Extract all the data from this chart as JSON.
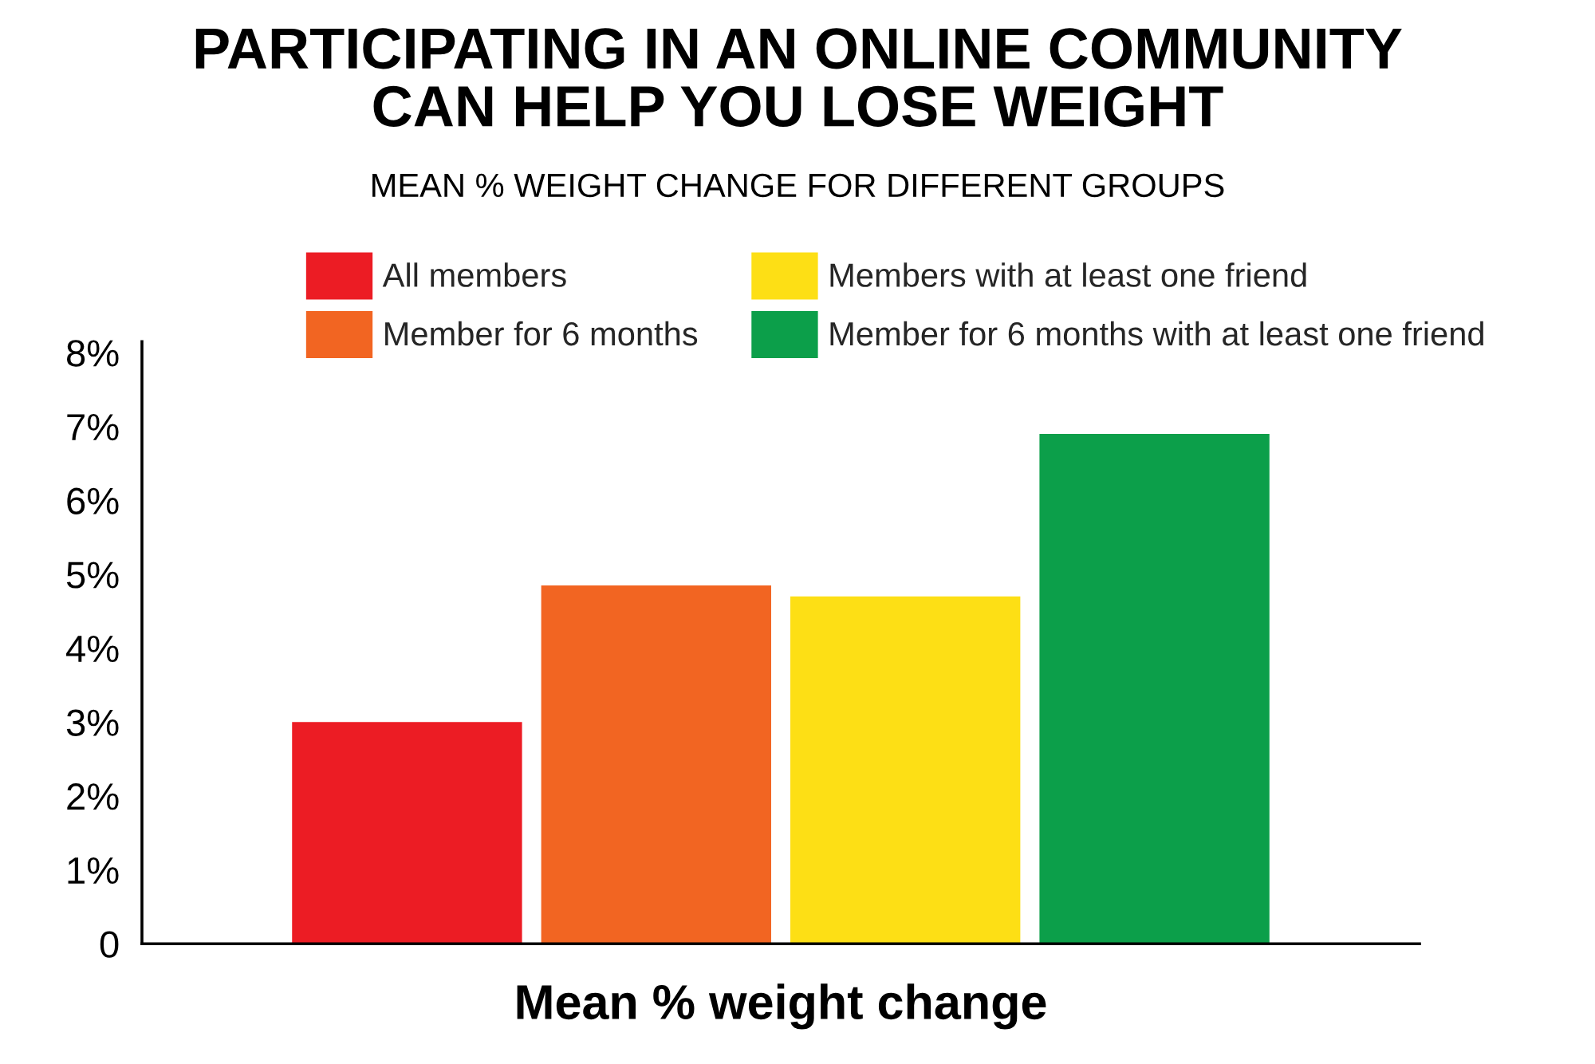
{
  "chart_data": {
    "type": "bar",
    "title": "PARTICIPATING IN AN ONLINE COMMUNITY\nCAN HELP YOU LOSE WEIGHT",
    "subtitle": "MEAN % WEIGHT CHANGE FOR DIFFERENT GROUPS",
    "xlabel": "Mean % weight change",
    "categories": [
      null
    ],
    "series": [
      {
        "name": "All members",
        "color": "#ec1c24",
        "values": [
          3.0
        ]
      },
      {
        "name": "Member for 6 months",
        "color": "#f26522",
        "values": [
          4.85
        ]
      },
      {
        "name": "Members with at least one friend",
        "color": "#fddf15",
        "values": [
          4.7
        ]
      },
      {
        "name": "Member for 6 months with at least one friend",
        "color": "#0c9f4a",
        "values": [
          6.9
        ]
      }
    ],
    "ylim": [
      0,
      8.15
    ],
    "yticks": [
      0,
      {
        "value": 1,
        "label": "1%"
      },
      {
        "value": 2,
        "label": "2%"
      },
      {
        "value": 3,
        "label": "3%"
      },
      {
        "value": 4,
        "label": "4%"
      },
      {
        "value": 5,
        "label": "5%"
      },
      {
        "value": 6,
        "label": "6%"
      },
      {
        "value": 7,
        "label": "7%"
      },
      {
        "value": 8,
        "label": "8%"
      }
    ],
    "legend": "top",
    "grid": false
  }
}
